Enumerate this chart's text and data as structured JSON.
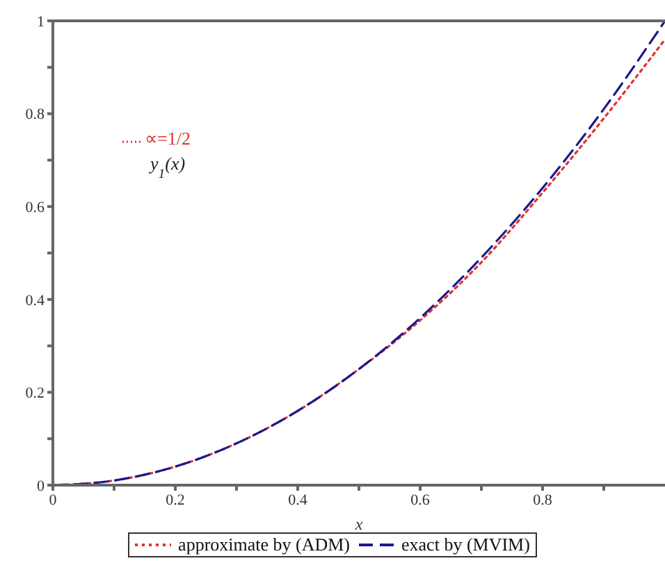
{
  "chart_data": {
    "type": "line",
    "xlabel": "x",
    "x": [
      0,
      0.1,
      0.2,
      0.3,
      0.4,
      0.5,
      0.6,
      0.7,
      0.8,
      0.9,
      1.0
    ],
    "series": [
      {
        "name": "approximate by (ADM)",
        "color": "#e03030",
        "line_style": "dotted",
        "values": [
          0,
          0.01,
          0.04,
          0.09,
          0.16,
          0.25,
          0.355,
          0.48,
          0.63,
          0.79,
          0.96
        ]
      },
      {
        "name": "exact by (MVIM)",
        "color": "#1a1a8c",
        "line_style": "dashed",
        "values": [
          0,
          0.01,
          0.04,
          0.09,
          0.16,
          0.25,
          0.36,
          0.49,
          0.64,
          0.81,
          1.0
        ]
      }
    ],
    "xlim": [
      0,
      1
    ],
    "xticks": [
      0,
      {
        "value": 0.1,
        "label": null
      },
      0.2,
      {
        "value": 0.3,
        "label": null
      },
      0.4,
      {
        "value": 0.5,
        "label": null
      },
      0.6,
      {
        "value": 0.7,
        "label": null
      },
      0.8,
      {
        "value": 0.9,
        "label": null
      }
    ],
    "ylim": [
      0,
      1
    ],
    "yticks": [
      0,
      {
        "value": 0.1,
        "label": null
      },
      0.2,
      {
        "value": 0.3,
        "label": null
      },
      0.4,
      {
        "value": 0.5,
        "label": null
      },
      0.6,
      {
        "value": 0.7,
        "label": null
      },
      0.8,
      {
        "value": 0.9,
        "label": null
      },
      1
    ],
    "annotations": [
      "∝=1/2",
      "y$_{1}$(x)"
    ],
    "legend": "bottom",
    "grid": false,
    "marker": "none"
  }
}
